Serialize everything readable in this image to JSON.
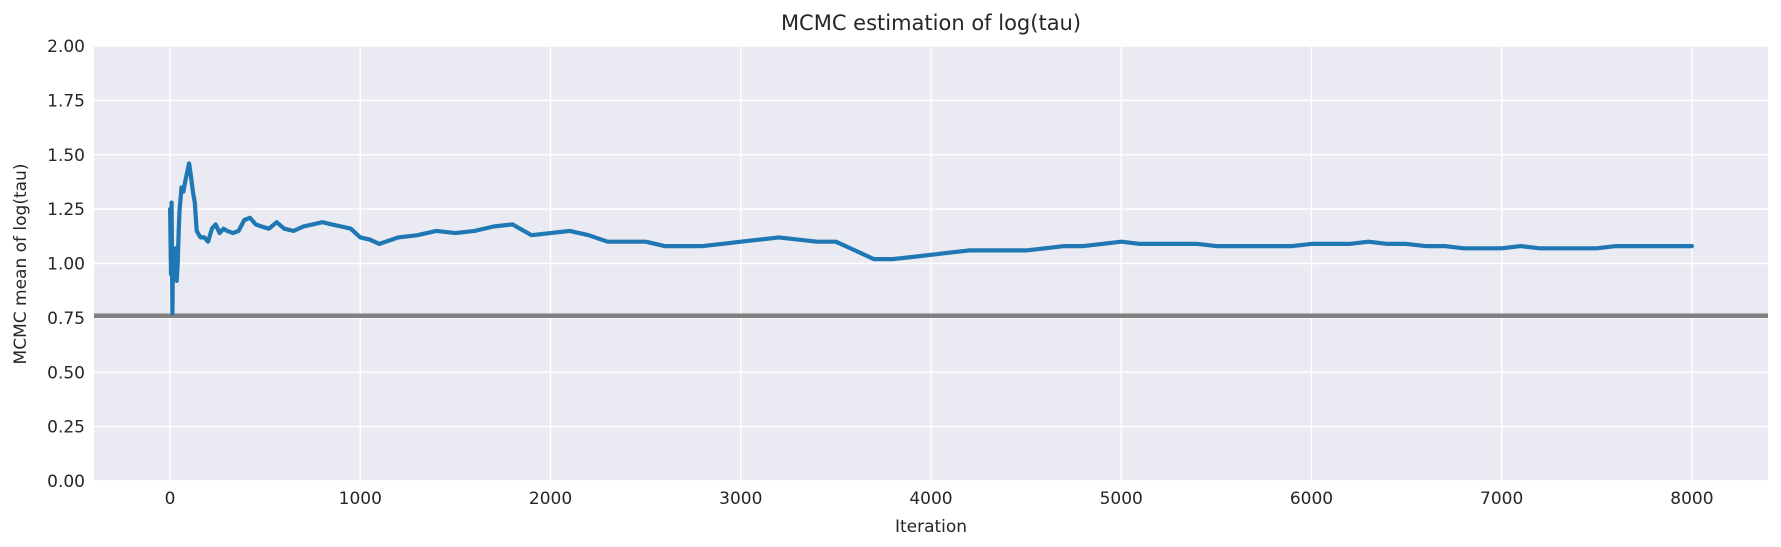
{
  "chart_data": {
    "type": "line",
    "title": "MCMC estimation of log(tau)",
    "xlabel": "Iteration",
    "ylabel": "MCMC mean of log(tau)",
    "xlim": [
      -400,
      8400
    ],
    "ylim": [
      0,
      2
    ],
    "xticks": [
      0,
      1000,
      2000,
      3000,
      4000,
      5000,
      6000,
      7000,
      8000
    ],
    "xtick_labels": [
      "0",
      "1000",
      "2000",
      "3000",
      "4000",
      "5000",
      "6000",
      "7000",
      "8000"
    ],
    "yticks": [
      0,
      0.25,
      0.5,
      0.75,
      1.0,
      1.25,
      1.5,
      1.75,
      2.0
    ],
    "ytick_labels": [
      "0.00",
      "0.25",
      "0.50",
      "0.75",
      "1.00",
      "1.25",
      "1.50",
      "1.75",
      "2.00"
    ],
    "grid": true,
    "background": "#eaeaf2",
    "reference_line": {
      "y": 0.76,
      "color": "#808080"
    },
    "series": [
      {
        "color": "#1f77b4",
        "x": [
          0,
          5,
          8,
          10,
          12,
          15,
          18,
          20,
          25,
          30,
          35,
          40,
          45,
          50,
          55,
          60,
          70,
          80,
          90,
          100,
          110,
          120,
          130,
          140,
          160,
          180,
          200,
          220,
          240,
          260,
          280,
          300,
          330,
          360,
          390,
          420,
          450,
          480,
          520,
          560,
          600,
          650,
          700,
          750,
          800,
          850,
          900,
          950,
          1000,
          1050,
          1100,
          1200,
          1300,
          1400,
          1500,
          1600,
          1700,
          1800,
          1900,
          2000,
          2100,
          2200,
          2300,
          2400,
          2500,
          2600,
          2700,
          2800,
          2900,
          3000,
          3100,
          3200,
          3300,
          3400,
          3500,
          3600,
          3700,
          3800,
          3900,
          4000,
          4100,
          4200,
          4300,
          4400,
          4500,
          4600,
          4700,
          4800,
          4900,
          5000,
          5100,
          5200,
          5300,
          5400,
          5500,
          5600,
          5700,
          5800,
          5900,
          6000,
          6100,
          6200,
          6300,
          6400,
          6500,
          6600,
          6700,
          6800,
          6900,
          7000,
          7100,
          7200,
          7300,
          7400,
          7500,
          7600,
          7700,
          7800,
          7900,
          8000
        ],
        "y": [
          1.25,
          0.95,
          1.28,
          1.0,
          0.77,
          1.0,
          0.93,
          1.07,
          0.95,
          1.07,
          0.92,
          1.0,
          1.15,
          1.25,
          1.3,
          1.35,
          1.33,
          1.38,
          1.42,
          1.46,
          1.4,
          1.33,
          1.28,
          1.15,
          1.12,
          1.12,
          1.1,
          1.16,
          1.18,
          1.14,
          1.16,
          1.15,
          1.14,
          1.15,
          1.2,
          1.21,
          1.18,
          1.17,
          1.16,
          1.19,
          1.16,
          1.15,
          1.17,
          1.18,
          1.19,
          1.18,
          1.17,
          1.16,
          1.12,
          1.11,
          1.09,
          1.12,
          1.13,
          1.15,
          1.14,
          1.15,
          1.17,
          1.18,
          1.13,
          1.14,
          1.15,
          1.13,
          1.1,
          1.1,
          1.1,
          1.08,
          1.08,
          1.08,
          1.09,
          1.1,
          1.11,
          1.12,
          1.11,
          1.1,
          1.1,
          1.06,
          1.02,
          1.02,
          1.03,
          1.04,
          1.05,
          1.06,
          1.06,
          1.06,
          1.06,
          1.07,
          1.08,
          1.08,
          1.09,
          1.1,
          1.09,
          1.09,
          1.09,
          1.09,
          1.08,
          1.08,
          1.08,
          1.08,
          1.08,
          1.09,
          1.09,
          1.09,
          1.1,
          1.09,
          1.09,
          1.08,
          1.08,
          1.07,
          1.07,
          1.07,
          1.08,
          1.07,
          1.07,
          1.07,
          1.07,
          1.08,
          1.08,
          1.08,
          1.08,
          1.08
        ]
      }
    ]
  }
}
